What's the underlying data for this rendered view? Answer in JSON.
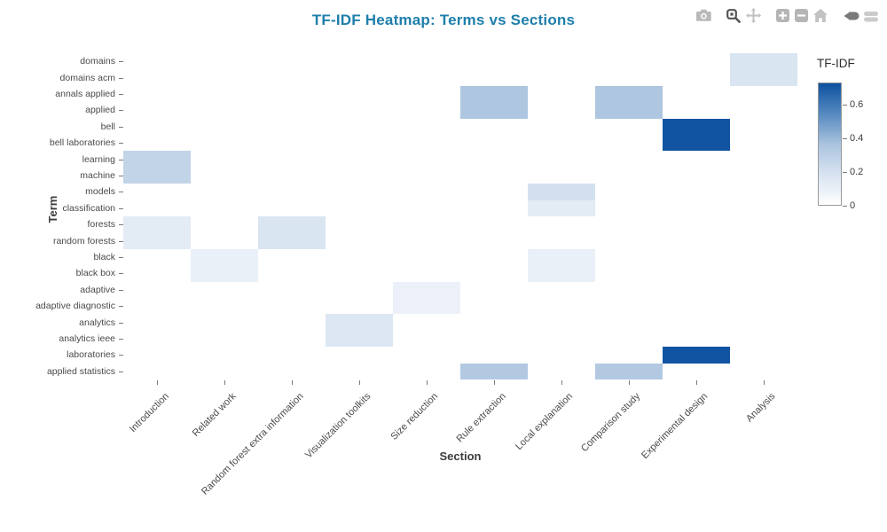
{
  "title": "TF-IDF Heatmap: Terms vs Sections",
  "modebar": {
    "icons": [
      "camera-icon",
      "zoom-icon",
      "pan-icon",
      "zoom-in-icon",
      "zoom-out-icon",
      "home-icon",
      "plotly-logo-icon"
    ]
  },
  "chart_data": {
    "type": "heatmap",
    "title": "TF-IDF Heatmap: Terms vs Sections",
    "xlabel": "Section",
    "ylabel": "Term",
    "x_categories": [
      "Introduction",
      "Related work",
      "Random forest extra information",
      "Visualization toolkits",
      "Size reduction",
      "Rule extraction",
      "Local explanation",
      "Comparison study",
      "Experimental design",
      "Analysis"
    ],
    "y_categories": [
      "domains",
      "domains acm",
      "annals applied",
      "applied",
      "bell",
      "bell laboratories",
      "learning",
      "machine",
      "models",
      "classification",
      "forests",
      "random forests",
      "black",
      "black box",
      "adaptive",
      "adaptive diagnostic",
      "analytics",
      "analytics ieee",
      "laboratories",
      "applied statistics"
    ],
    "values": [
      [
        0,
        0,
        0,
        0,
        0,
        0,
        0,
        0,
        0,
        0.17
      ],
      [
        0,
        0,
        0,
        0,
        0,
        0,
        0,
        0,
        0,
        0.17
      ],
      [
        0,
        0,
        0,
        0,
        0,
        0.35,
        0,
        0.35,
        0,
        0
      ],
      [
        0,
        0,
        0,
        0,
        0,
        0.35,
        0,
        0.35,
        0,
        0
      ],
      [
        0,
        0,
        0,
        0,
        0,
        0,
        0,
        0,
        0.72,
        0
      ],
      [
        0,
        0,
        0,
        0,
        0,
        0,
        0,
        0,
        0.72,
        0
      ],
      [
        0.27,
        0,
        0,
        0,
        0,
        0,
        0,
        0,
        0,
        0
      ],
      [
        0.27,
        0,
        0,
        0,
        0,
        0,
        0,
        0,
        0,
        0
      ],
      [
        0,
        0,
        0,
        0,
        0,
        0,
        0.2,
        0,
        0,
        0
      ],
      [
        0,
        0,
        0,
        0,
        0,
        0,
        0.13,
        0,
        0,
        0
      ],
      [
        0.13,
        0,
        0.17,
        0,
        0,
        0,
        0,
        0,
        0,
        0
      ],
      [
        0.13,
        0,
        0.17,
        0,
        0,
        0,
        0,
        0,
        0,
        0
      ],
      [
        0,
        0.09,
        0,
        0,
        0,
        0,
        0.09,
        0,
        0,
        0
      ],
      [
        0,
        0.09,
        0,
        0,
        0,
        0,
        0.09,
        0,
        0,
        0
      ],
      [
        0,
        0,
        0,
        0,
        0.08,
        0,
        0,
        0,
        0,
        0
      ],
      [
        0,
        0,
        0,
        0,
        0.08,
        0,
        0,
        0,
        0,
        0
      ],
      [
        0,
        0,
        0,
        0.16,
        0,
        0,
        0,
        0,
        0,
        0
      ],
      [
        0,
        0,
        0,
        0.16,
        0,
        0,
        0,
        0,
        0,
        0
      ],
      [
        0,
        0,
        0,
        0,
        0,
        0,
        0,
        0,
        0.72,
        0
      ],
      [
        0,
        0,
        0,
        0,
        0,
        0.33,
        0,
        0.33,
        0,
        0
      ]
    ],
    "zmin": 0,
    "zmax": 0.73,
    "grid": false,
    "legend_position": "right",
    "colorbar": {
      "title": "TF-IDF",
      "tick_labels": [
        "0.6",
        "0.4",
        "0.2",
        "0"
      ],
      "tick_values": [
        0.6,
        0.4,
        0.2,
        0
      ]
    },
    "colors": {
      "low": "#ffffff",
      "high": "#0d52a0",
      "title_accent": "#1e7fab"
    }
  }
}
